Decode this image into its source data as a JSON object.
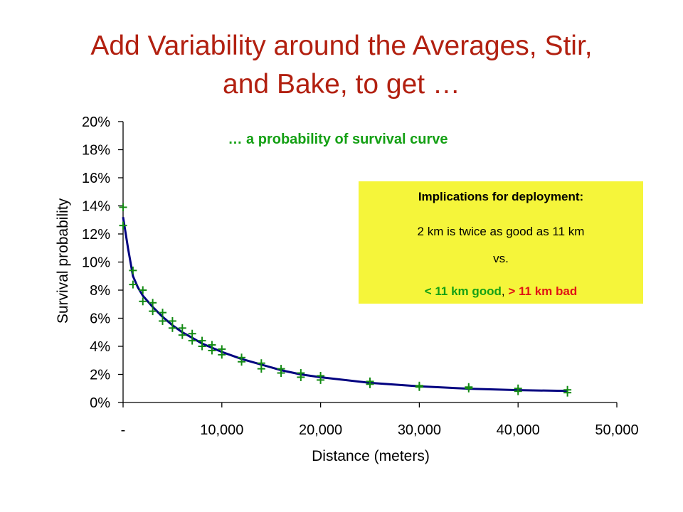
{
  "slide": {
    "title_line1": "Add Variability around the Averages, Stir,",
    "title_line2": "and Bake, to get …"
  },
  "callout": {
    "heading": "Implications for deployment:",
    "line1": "2 km is twice as good as 11 km",
    "line2": "vs.",
    "good": "< 11 km good",
    "sep": ", ",
    "bad": "> 11 km bad"
  },
  "colors": {
    "title": "#b22010",
    "subtitle": "#14a014",
    "curve": "#000080",
    "markers": "#138a13",
    "callout_bg": "#f5f53a",
    "bad": "#e01414"
  },
  "chart_data": {
    "type": "scatter",
    "title": "… a probability of survival curve",
    "xlabel": "Distance (meters)",
    "ylabel": "Survival probability",
    "xlim": [
      0,
      50000
    ],
    "ylim": [
      0,
      0.2
    ],
    "x_ticks": [
      0,
      10000,
      20000,
      30000,
      40000,
      50000
    ],
    "x_tick_labels": [
      "-",
      "10,000",
      "20,000",
      "30,000",
      "40,000",
      "50,000"
    ],
    "y_ticks": [
      0,
      0.02,
      0.04,
      0.06,
      0.08,
      0.1,
      0.12,
      0.14,
      0.16,
      0.18,
      0.2
    ],
    "y_tick_labels": [
      "0%",
      "2%",
      "4%",
      "6%",
      "8%",
      "10%",
      "12%",
      "14%",
      "16%",
      "18%",
      "20%"
    ],
    "grid": false,
    "series": [
      {
        "kind": "markers",
        "marker": "+",
        "x": [
          0,
          0,
          1000,
          1000,
          2000,
          2000,
          3000,
          3000,
          4000,
          4000,
          5000,
          5000,
          6000,
          6000,
          7000,
          7000,
          8000,
          8000,
          9000,
          9000,
          10000,
          10000,
          12000,
          12000,
          14000,
          14000,
          16000,
          16000,
          18000,
          18000,
          20000,
          20000,
          25000,
          25000,
          30000,
          30000,
          35000,
          35000,
          40000,
          40000,
          45000,
          45000
        ],
        "y": [
          0.139,
          0.126,
          0.094,
          0.084,
          0.08,
          0.072,
          0.071,
          0.065,
          0.064,
          0.058,
          0.058,
          0.053,
          0.053,
          0.048,
          0.049,
          0.044,
          0.044,
          0.04,
          0.041,
          0.037,
          0.038,
          0.034,
          0.032,
          0.029,
          0.028,
          0.024,
          0.024,
          0.021,
          0.021,
          0.018,
          0.019,
          0.016,
          0.015,
          0.013,
          0.012,
          0.011,
          0.011,
          0.01,
          0.01,
          0.008,
          0.009,
          0.007
        ]
      },
      {
        "kind": "line",
        "x": [
          0,
          500,
          1000,
          1500,
          2000,
          3000,
          4000,
          5000,
          6000,
          7000,
          8000,
          9000,
          10000,
          12000,
          14000,
          16000,
          18000,
          20000,
          25000,
          30000,
          35000,
          40000,
          45000
        ],
        "y": [
          0.132,
          0.11,
          0.09,
          0.082,
          0.076,
          0.068,
          0.061,
          0.055,
          0.05,
          0.046,
          0.042,
          0.039,
          0.036,
          0.031,
          0.027,
          0.023,
          0.02,
          0.018,
          0.014,
          0.0115,
          0.0098,
          0.0088,
          0.0082
        ]
      }
    ]
  }
}
